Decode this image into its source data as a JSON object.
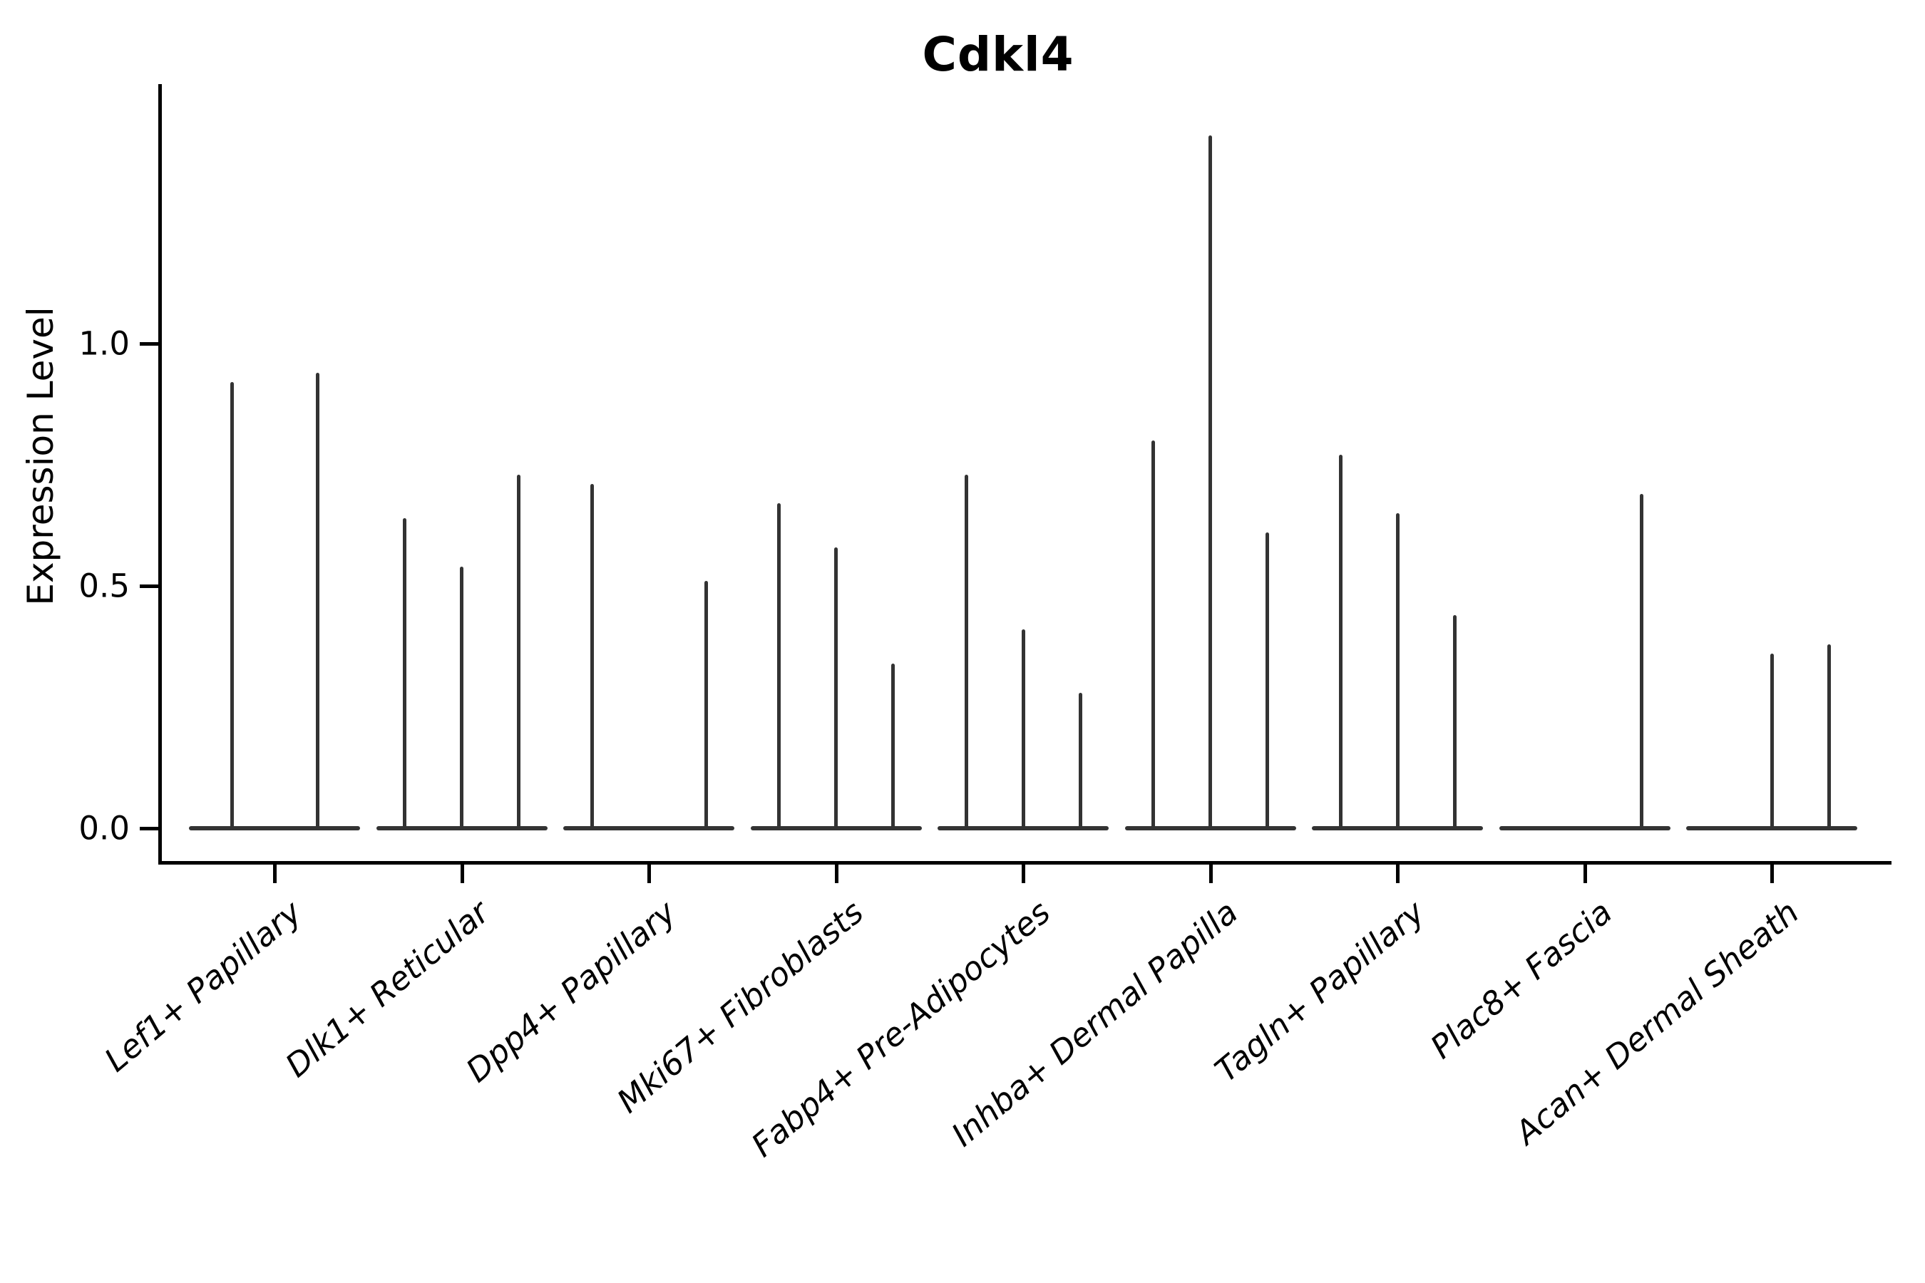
{
  "title": "Cdkl4",
  "ylabel": "Expression Level",
  "style": {
    "background": "#ffffff",
    "violin_color": "#333333",
    "axis_color": "#000000",
    "text_color": "#000000"
  },
  "chart_data": {
    "type": "violin",
    "title": "Cdkl4",
    "xlabel": "",
    "ylabel": "Expression Level",
    "legend": "none",
    "grid": false,
    "ylim": [
      -0.07,
      1.54
    ],
    "yticks": [
      {
        "label": "0.0",
        "value": 0.0
      },
      {
        "label": "0.5",
        "value": 0.5
      },
      {
        "label": "1.0",
        "value": 1.0
      }
    ],
    "categories": [
      "Lef1+ Papillary",
      "Dlk1+ Reticular",
      "Dpp4+ Papillary",
      "Mki67+ Fibroblasts",
      "Fabp4+ Pre-Adipocytes",
      "Inhba+ Dermal Papilla",
      "Tagln+ Papillary",
      "Plac8+ Fascia",
      "Acan+ Dermal Sheath"
    ],
    "groups": [
      {
        "label": "Lef1+ Papillary",
        "violins": [
          {
            "offset": -60,
            "max": 0.92
          },
          {
            "offset": 60,
            "max": 0.94
          }
        ]
      },
      {
        "label": "Dlk1+ Reticular",
        "violins": [
          {
            "offset": -80,
            "max": 0.64
          },
          {
            "offset": 0,
            "max": 0.54
          },
          {
            "offset": 80,
            "max": 0.73
          }
        ]
      },
      {
        "label": "Dpp4+ Papillary",
        "violins": [
          {
            "offset": -80,
            "max": 0.71
          },
          {
            "offset": 80,
            "max": 0.51
          }
        ]
      },
      {
        "label": "Mki67+ Fibroblasts",
        "violins": [
          {
            "offset": -80,
            "max": 0.67
          },
          {
            "offset": 0,
            "max": 0.58
          },
          {
            "offset": 80,
            "max": 0.34
          }
        ]
      },
      {
        "label": "Fabp4+ Pre-Adipocytes",
        "violins": [
          {
            "offset": -80,
            "max": 0.73
          },
          {
            "offset": 0,
            "max": 0.41
          },
          {
            "offset": 80,
            "max": 0.28
          }
        ]
      },
      {
        "label": "Inhba+ Dermal Papilla",
        "violins": [
          {
            "offset": -80,
            "max": 0.8
          },
          {
            "offset": 0,
            "max": 1.43
          },
          {
            "offset": 80,
            "max": 0.61
          }
        ]
      },
      {
        "label": "Tagln+ Papillary",
        "violins": [
          {
            "offset": -80,
            "max": 0.77
          },
          {
            "offset": 0,
            "max": 0.65
          },
          {
            "offset": 80,
            "max": 0.44
          }
        ]
      },
      {
        "label": "Plac8+ Fascia",
        "violins": [
          {
            "offset": 80,
            "max": 0.69
          }
        ]
      },
      {
        "label": "Acan+ Dermal Sheath",
        "violins": [
          {
            "offset": 0,
            "max": 0.36
          },
          {
            "offset": 80,
            "max": 0.38
          }
        ]
      }
    ]
  }
}
